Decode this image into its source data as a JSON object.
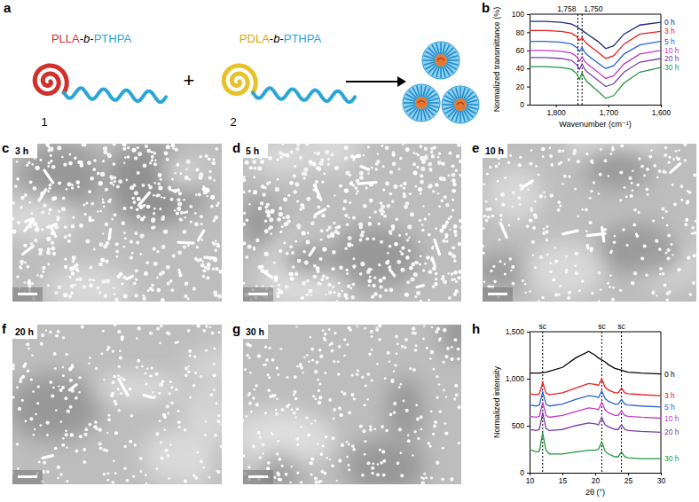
{
  "chart_data": [
    {
      "type": "line",
      "x_label": "Wavenumber (cm⁻¹)",
      "y_label": "Normalized transmittance (%)",
      "x": [
        1850,
        1820,
        1790,
        1770,
        1760,
        1755,
        1750,
        1745,
        1740,
        1720,
        1705,
        1690,
        1670,
        1640,
        1600
      ],
      "xlim": [
        1850,
        1600
      ],
      "xticks": [
        {
          "value": 1800,
          "label": "1,800"
        },
        {
          "value": 1700,
          "label": "1,700"
        },
        {
          "value": 1600,
          "label": "1,600"
        }
      ],
      "ylim": [
        0,
        100
      ],
      "yticks": [
        0,
        20,
        40,
        60,
        80,
        100
      ],
      "annotations": [
        {
          "value": 1758,
          "label": "1,758"
        },
        {
          "value": 1750,
          "label": "1,750"
        }
      ],
      "series": [
        {
          "name": "0 h",
          "color": "#1b2a80",
          "values": [
            92,
            92,
            91,
            89,
            86,
            84,
            82,
            80,
            78,
            70,
            62,
            65,
            78,
            88,
            91
          ]
        },
        {
          "name": "3 h",
          "color": "#e8201f",
          "values": [
            82,
            82,
            81,
            79,
            75,
            71,
            74,
            70,
            67,
            58,
            51,
            54,
            67,
            78,
            81
          ]
        },
        {
          "name": "5 h",
          "color": "#2a63d4",
          "values": [
            70,
            70,
            69,
            67,
            63,
            59,
            63,
            58,
            55,
            46,
            40,
            43,
            56,
            66,
            70
          ]
        },
        {
          "name": "10 h",
          "color": "#c03cc0",
          "values": [
            60,
            60,
            59,
            57,
            53,
            48,
            53,
            48,
            45,
            36,
            29,
            32,
            45,
            56,
            60
          ]
        },
        {
          "name": "20 h",
          "color": "#7a3fa8",
          "values": [
            52,
            52,
            51,
            49,
            44,
            39,
            45,
            39,
            36,
            27,
            20,
            23,
            36,
            47,
            51
          ]
        },
        {
          "name": "30 h",
          "color": "#1f9a3a",
          "values": [
            42,
            42,
            41,
            39,
            34,
            28,
            35,
            29,
            25,
            15,
            7,
            10,
            24,
            36,
            41
          ]
        }
      ]
    },
    {
      "type": "line",
      "x_label": "2θ (°)",
      "y_label": "Normalized intensity",
      "x": [
        10,
        11,
        11.5,
        12,
        12.5,
        13,
        15,
        17,
        19,
        20,
        20.5,
        21,
        21.5,
        22,
        23,
        23.5,
        24,
        24.5,
        25,
        27,
        30
      ],
      "xlim": [
        10,
        30
      ],
      "xticks": [
        10,
        15,
        20,
        25,
        30
      ],
      "ylim": [
        0,
        1500
      ],
      "yticks": [
        0,
        500,
        {
          "value": 1000,
          "label": "1,000"
        },
        {
          "value": 1500,
          "label": "1,500"
        }
      ],
      "annotations": [
        {
          "value": 12,
          "label": "sc"
        },
        {
          "value": 21,
          "label": "sc"
        },
        {
          "value": 24,
          "label": "sc"
        }
      ],
      "series": [
        {
          "name": "0 h",
          "color": "#000000",
          "values": [
            1060,
            1060,
            1060,
            1065,
            1070,
            1080,
            1120,
            1220,
            1290,
            1250,
            1220,
            1200,
            1180,
            1150,
            1110,
            1100,
            1090,
            1080,
            1070,
            1060,
            1050
          ]
        },
        {
          "name": "3 h",
          "color": "#e8201f",
          "values": [
            840,
            830,
            840,
            960,
            850,
            830,
            850,
            900,
            950,
            940,
            930,
            1000,
            910,
            880,
            850,
            850,
            900,
            850,
            840,
            830,
            820
          ]
        },
        {
          "name": "5 h",
          "color": "#2a63d4",
          "values": [
            720,
            710,
            720,
            860,
            730,
            710,
            730,
            780,
            820,
            810,
            800,
            870,
            790,
            760,
            730,
            730,
            780,
            730,
            720,
            710,
            700
          ]
        },
        {
          "name": "10 h",
          "color": "#c03cc0",
          "values": [
            600,
            590,
            600,
            750,
            610,
            590,
            610,
            650,
            690,
            680,
            670,
            750,
            670,
            640,
            610,
            610,
            660,
            610,
            600,
            590,
            580
          ]
        },
        {
          "name": "20 h",
          "color": "#7a3fa8",
          "values": [
            460,
            450,
            460,
            640,
            470,
            450,
            460,
            500,
            530,
            520,
            510,
            590,
            510,
            490,
            460,
            460,
            510,
            460,
            450,
            440,
            430
          ]
        },
        {
          "name": "30 h",
          "color": "#1f9a3a",
          "values": [
            250,
            220,
            230,
            420,
            240,
            200,
            200,
            220,
            240,
            240,
            250,
            330,
            230,
            200,
            170,
            170,
            220,
            170,
            160,
            150,
            150
          ]
        }
      ]
    }
  ],
  "panel_letters": [
    "a",
    "b",
    "c",
    "d",
    "e",
    "f",
    "g",
    "h"
  ],
  "schematic": {
    "polymers": [
      {
        "name": "PLLA-b-PTHPA",
        "number": "1"
      },
      {
        "name": "PDLA-b-PTHPA",
        "number": "2"
      }
    ],
    "operator": "+"
  },
  "micrographs": [
    {
      "time": "3 h"
    },
    {
      "time": "5 h"
    },
    {
      "time": "10 h"
    },
    {
      "time": "20 h"
    },
    {
      "time": "30 h"
    }
  ]
}
